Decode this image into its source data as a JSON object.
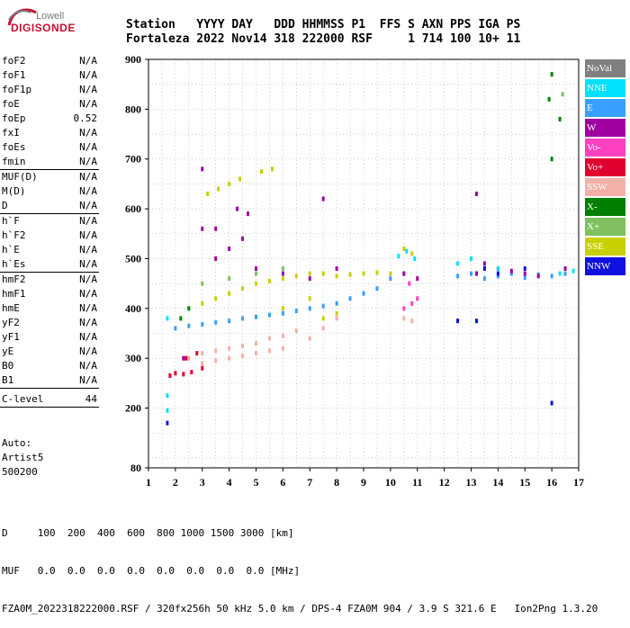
{
  "logo": {
    "line1": "Lowell",
    "line2": "DIGISONDE"
  },
  "header": {
    "row1": "Station   YYYY DAY   DDD HHMMSS P1  FFS S AXN PPS IGA PS",
    "row2": "Fortaleza 2022 Nov14 318 222000 RSF     1 714 100 10+ 11"
  },
  "params": {
    "group1": [
      {
        "name": "foF2",
        "value": "N/A"
      },
      {
        "name": "foF1",
        "value": "N/A"
      },
      {
        "name": "foF1p",
        "value": "N/A"
      },
      {
        "name": "foE",
        "value": "N/A"
      },
      {
        "name": "foEp",
        "value": "0.52"
      },
      {
        "name": "fxI",
        "value": "N/A"
      },
      {
        "name": "foEs",
        "value": "N/A"
      },
      {
        "name": "fmin",
        "value": "N/A"
      }
    ],
    "group2": [
      {
        "name": "MUF(D)",
        "value": "N/A"
      },
      {
        "name": "M(D)",
        "value": "N/A"
      },
      {
        "name": "D",
        "value": "N/A"
      }
    ],
    "group3": [
      {
        "name": "h`F",
        "value": "N/A"
      },
      {
        "name": "h`F2",
        "value": "N/A"
      },
      {
        "name": "h`E",
        "value": "N/A"
      },
      {
        "name": "h`Es",
        "value": "N/A"
      }
    ],
    "group4": [
      {
        "name": "hmF2",
        "value": "N/A"
      },
      {
        "name": "hmF1",
        "value": "N/A"
      },
      {
        "name": "hmE",
        "value": "N/A"
      },
      {
        "name": "yF2",
        "value": "N/A"
      },
      {
        "name": "yF1",
        "value": "N/A"
      },
      {
        "name": "yE",
        "value": "N/A"
      },
      {
        "name": "B0",
        "value": "N/A"
      },
      {
        "name": "B1",
        "value": "N/A"
      }
    ],
    "clevel": {
      "name": "C-level",
      "value": "44"
    }
  },
  "auto": {
    "line1": "Auto:",
    "line2": "Artist5",
    "line3": "500200"
  },
  "footer": {
    "line1": "D     100  200  400  600  800 1000 1500 3000 [km]",
    "line2": "MUF   0.0  0.0  0.0  0.0  0.0  0.0  0.0  0.0 [MHz]",
    "line3": "FZA0M_2022318222000.RSF / 320fx256h 50 kHz 5.0 km / DPS-4 FZA0M 904 / 3.9 S 321.6 E   Ion2Png 1.3.20"
  },
  "legend": [
    {
      "label": "NoVal",
      "color": "#808080"
    },
    {
      "label": "NNE",
      "color": "#00e0ff"
    },
    {
      "label": "E",
      "color": "#3aa0ff"
    },
    {
      "label": "W",
      "color": "#a000a0"
    },
    {
      "label": "Vo-",
      "color": "#ff40c0"
    },
    {
      "label": "Vo+",
      "color": "#e00030"
    },
    {
      "label": "SSW",
      "color": "#f4b0a8"
    },
    {
      "label": "X-",
      "color": "#008000"
    },
    {
      "label": "X+",
      "color": "#80c060"
    },
    {
      "label": "SSE",
      "color": "#c8d000"
    },
    {
      "label": "NNW",
      "color": "#1010e0"
    }
  ],
  "chart_data": {
    "type": "scatter",
    "title": "",
    "xlabel": "",
    "ylabel": "",
    "xlim": [
      1,
      17
    ],
    "ylim": [
      80,
      900
    ],
    "x_ticks": [
      1,
      2,
      3,
      4,
      5,
      6,
      7,
      8,
      9,
      10,
      11,
      12,
      13,
      14,
      15,
      16,
      17
    ],
    "y_ticks": [
      80,
      200,
      300,
      400,
      500,
      600,
      700,
      800,
      900
    ],
    "grid": "dotted",
    "series": [
      {
        "name": "SSW",
        "color": "#f4b0a8",
        "points": [
          [
            2.5,
            300
          ],
          [
            3,
            310
          ],
          [
            3.5,
            315
          ],
          [
            4,
            320
          ],
          [
            4.5,
            325
          ],
          [
            5,
            330
          ],
          [
            5.5,
            340
          ],
          [
            6,
            345
          ],
          [
            6.5,
            355
          ],
          [
            3,
            290
          ],
          [
            3.5,
            295
          ],
          [
            4,
            300
          ],
          [
            4.5,
            305
          ],
          [
            5,
            310
          ],
          [
            5.5,
            315
          ],
          [
            6,
            320
          ],
          [
            7,
            340
          ],
          [
            7.5,
            360
          ],
          [
            8,
            380
          ],
          [
            10.5,
            380
          ],
          [
            10.8,
            375
          ]
        ]
      },
      {
        "name": "E",
        "color": "#3aa0ff",
        "points": [
          [
            2,
            360
          ],
          [
            2.5,
            365
          ],
          [
            3,
            368
          ],
          [
            3.5,
            372
          ],
          [
            4,
            375
          ],
          [
            4.5,
            380
          ],
          [
            5,
            383
          ],
          [
            5.5,
            387
          ],
          [
            6,
            390
          ],
          [
            6.5,
            395
          ],
          [
            7,
            400
          ],
          [
            7.5,
            405
          ],
          [
            8,
            410
          ],
          [
            8.5,
            420
          ],
          [
            9,
            430
          ],
          [
            9.5,
            440
          ],
          [
            10,
            460
          ],
          [
            10.5,
            470
          ],
          [
            12.5,
            465
          ],
          [
            13,
            470
          ],
          [
            13.5,
            460
          ],
          [
            14,
            465
          ],
          [
            14.5,
            470
          ],
          [
            15,
            462
          ],
          [
            15.5,
            468
          ],
          [
            16,
            465
          ],
          [
            16.5,
            470
          ]
        ]
      },
      {
        "name": "SSE",
        "color": "#c8d000",
        "points": [
          [
            3,
            410
          ],
          [
            3.5,
            420
          ],
          [
            4,
            430
          ],
          [
            4.5,
            440
          ],
          [
            5,
            450
          ],
          [
            5.5,
            455
          ],
          [
            6,
            460
          ],
          [
            6.5,
            465
          ],
          [
            7,
            470
          ],
          [
            7.5,
            470
          ],
          [
            8,
            465
          ],
          [
            8.5,
            468
          ],
          [
            9,
            470
          ],
          [
            9.5,
            472
          ],
          [
            10,
            470
          ],
          [
            6,
            400
          ],
          [
            7,
            420
          ],
          [
            7.5,
            380
          ],
          [
            8,
            390
          ],
          [
            3.2,
            630
          ],
          [
            3.6,
            640
          ],
          [
            4,
            650
          ],
          [
            4.4,
            660
          ],
          [
            5.2,
            675
          ],
          [
            5.6,
            680
          ],
          [
            10.5,
            520
          ],
          [
            10.8,
            510
          ]
        ]
      },
      {
        "name": "W",
        "color": "#a000a0",
        "points": [
          [
            3,
            560
          ],
          [
            3.5,
            560
          ],
          [
            3,
            680
          ],
          [
            3.5,
            500
          ],
          [
            4,
            520
          ],
          [
            4.5,
            540
          ],
          [
            4.3,
            600
          ],
          [
            4.7,
            590
          ],
          [
            5,
            480
          ],
          [
            6,
            470
          ],
          [
            7,
            460
          ],
          [
            7.5,
            620
          ],
          [
            8,
            480
          ],
          [
            10.5,
            470
          ],
          [
            11,
            460
          ],
          [
            13.2,
            470
          ],
          [
            13.5,
            490
          ],
          [
            14,
            480
          ],
          [
            14.5,
            475
          ],
          [
            15,
            470
          ],
          [
            15.5,
            465
          ],
          [
            16.5,
            480
          ],
          [
            2.3,
            300
          ],
          [
            13.2,
            630
          ]
        ]
      },
      {
        "name": "Vo+",
        "color": "#e00030",
        "points": [
          [
            1.8,
            265
          ],
          [
            2,
            270
          ],
          [
            2.3,
            268
          ],
          [
            2.6,
            272
          ],
          [
            3,
            280
          ],
          [
            2.4,
            300
          ],
          [
            2.8,
            310
          ]
        ]
      },
      {
        "name": "NNE",
        "color": "#00e0ff",
        "points": [
          [
            1.7,
            380
          ],
          [
            1.7,
            225
          ],
          [
            1.7,
            195
          ],
          [
            10.3,
            505
          ],
          [
            10.6,
            515
          ],
          [
            10.9,
            500
          ],
          [
            12.5,
            490
          ],
          [
            13,
            500
          ],
          [
            14,
            480
          ],
          [
            16.3,
            470
          ],
          [
            16.8,
            475
          ]
        ]
      },
      {
        "name": "X-",
        "color": "#008000",
        "points": [
          [
            2.2,
            380
          ],
          [
            2.5,
            400
          ],
          [
            16,
            870
          ],
          [
            16,
            700
          ],
          [
            16.3,
            780
          ],
          [
            15.9,
            820
          ]
        ]
      },
      {
        "name": "NNW",
        "color": "#1010e0",
        "points": [
          [
            1.7,
            170
          ],
          [
            12.5,
            375
          ],
          [
            13.2,
            375
          ],
          [
            13.5,
            480
          ],
          [
            14,
            470
          ],
          [
            15,
            480
          ],
          [
            16,
            210
          ]
        ]
      },
      {
        "name": "X+",
        "color": "#80c060",
        "points": [
          [
            3,
            450
          ],
          [
            4,
            460
          ],
          [
            5,
            470
          ],
          [
            6,
            480
          ],
          [
            16.4,
            830
          ]
        ]
      },
      {
        "name": "Vo-",
        "color": "#ff40c0",
        "points": [
          [
            10.5,
            400
          ],
          [
            10.8,
            410
          ],
          [
            11,
            420
          ],
          [
            10.7,
            450
          ]
        ]
      }
    ]
  }
}
